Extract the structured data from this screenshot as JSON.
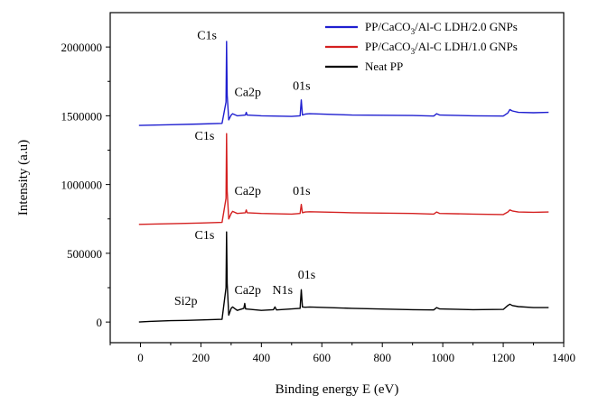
{
  "chart_data": {
    "type": "line",
    "xlabel": "Binding energy E (eV)",
    "ylabel": "Intensity (a.u)",
    "xlim": [
      -100,
      1400
    ],
    "ylim": [
      -150000,
      2250000
    ],
    "xticks": [
      0,
      200,
      400,
      600,
      800,
      1000,
      1200,
      1400
    ],
    "yticks": [
      0,
      500000,
      1000000,
      1500000,
      2000000
    ],
    "legend_position": "top-right",
    "series": [
      {
        "name": "PP/CaCO3/Al-C LDH/2.0 GNPs",
        "name_parts": [
          "PP/CaCO",
          "3",
          "/Al-C LDH/2.0 GNPs"
        ],
        "color": "#1f1fd0",
        "x": [
          -5,
          100,
          200,
          270,
          283,
          285,
          287,
          292,
          300,
          305,
          320,
          347,
          350,
          353,
          400,
          500,
          528,
          532,
          536,
          545,
          560,
          700,
          900,
          970,
          980,
          990,
          1100,
          1200,
          1215,
          1222,
          1230,
          1250,
          1300,
          1350
        ],
        "y": [
          1430000,
          1435000,
          1440000,
          1445000,
          1600000,
          2040000,
          1650000,
          1470000,
          1505000,
          1515000,
          1500000,
          1505000,
          1525000,
          1505000,
          1500000,
          1495000,
          1500000,
          1615000,
          1505000,
          1512000,
          1515000,
          1505000,
          1502000,
          1498000,
          1515000,
          1505000,
          1500000,
          1498000,
          1520000,
          1545000,
          1535000,
          1525000,
          1522000,
          1525000
        ]
      },
      {
        "name": "PP/CaCO3/Al-C LDH/1.0 GNPs",
        "name_parts": [
          "PP/CaCO",
          "3",
          "/Al-C LDH/1.0 GNPs"
        ],
        "color": "#d42020",
        "x": [
          -5,
          100,
          200,
          270,
          283,
          285,
          287,
          292,
          300,
          305,
          320,
          347,
          350,
          353,
          400,
          500,
          528,
          532,
          536,
          545,
          560,
          700,
          900,
          970,
          980,
          990,
          1100,
          1200,
          1215,
          1222,
          1230,
          1250,
          1300,
          1350
        ],
        "y": [
          710000,
          715000,
          720000,
          725000,
          900000,
          1370000,
          950000,
          750000,
          790000,
          805000,
          790000,
          795000,
          815000,
          795000,
          790000,
          785000,
          790000,
          855000,
          795000,
          800000,
          802000,
          795000,
          790000,
          785000,
          800000,
          790000,
          785000,
          782000,
          800000,
          815000,
          808000,
          800000,
          798000,
          800000
        ]
      },
      {
        "name": "Neat PP",
        "name_parts": [
          "Neat PP",
          "",
          ""
        ],
        "color": "#000000",
        "x": [
          -5,
          30,
          100,
          150,
          200,
          270,
          283,
          285,
          287,
          292,
          300,
          305,
          320,
          342,
          345,
          348,
          400,
          440,
          445,
          450,
          500,
          528,
          532,
          536,
          545,
          560,
          700,
          900,
          970,
          980,
          990,
          1100,
          1200,
          1215,
          1222,
          1230,
          1250,
          1300,
          1350
        ],
        "y": [
          0,
          5000,
          10000,
          12000,
          15000,
          20000,
          250000,
          655000,
          280000,
          50000,
          100000,
          110000,
          85000,
          100000,
          135000,
          95000,
          85000,
          90000,
          110000,
          88000,
          95000,
          100000,
          235000,
          110000,
          108000,
          110000,
          100000,
          90000,
          88000,
          105000,
          95000,
          90000,
          92000,
          120000,
          130000,
          120000,
          112000,
          105000,
          105000
        ]
      }
    ],
    "annotations": [
      {
        "text": "C1s",
        "x": 220,
        "y": 2055000
      },
      {
        "text": "Ca2p",
        "x": 355,
        "y": 1645000
      },
      {
        "text": "01s",
        "x": 533,
        "y": 1690000
      },
      {
        "text": "C1s",
        "x": 212,
        "y": 1325000
      },
      {
        "text": "Ca2p",
        "x": 355,
        "y": 925000
      },
      {
        "text": "01s",
        "x": 533,
        "y": 925000
      },
      {
        "text": "C1s",
        "x": 212,
        "y": 605000
      },
      {
        "text": "Si2p",
        "x": 150,
        "y": 125000
      },
      {
        "text": "Ca2p",
        "x": 355,
        "y": 205000
      },
      {
        "text": "N1s",
        "x": 470,
        "y": 205000
      },
      {
        "text": "01s",
        "x": 550,
        "y": 315000
      }
    ]
  }
}
